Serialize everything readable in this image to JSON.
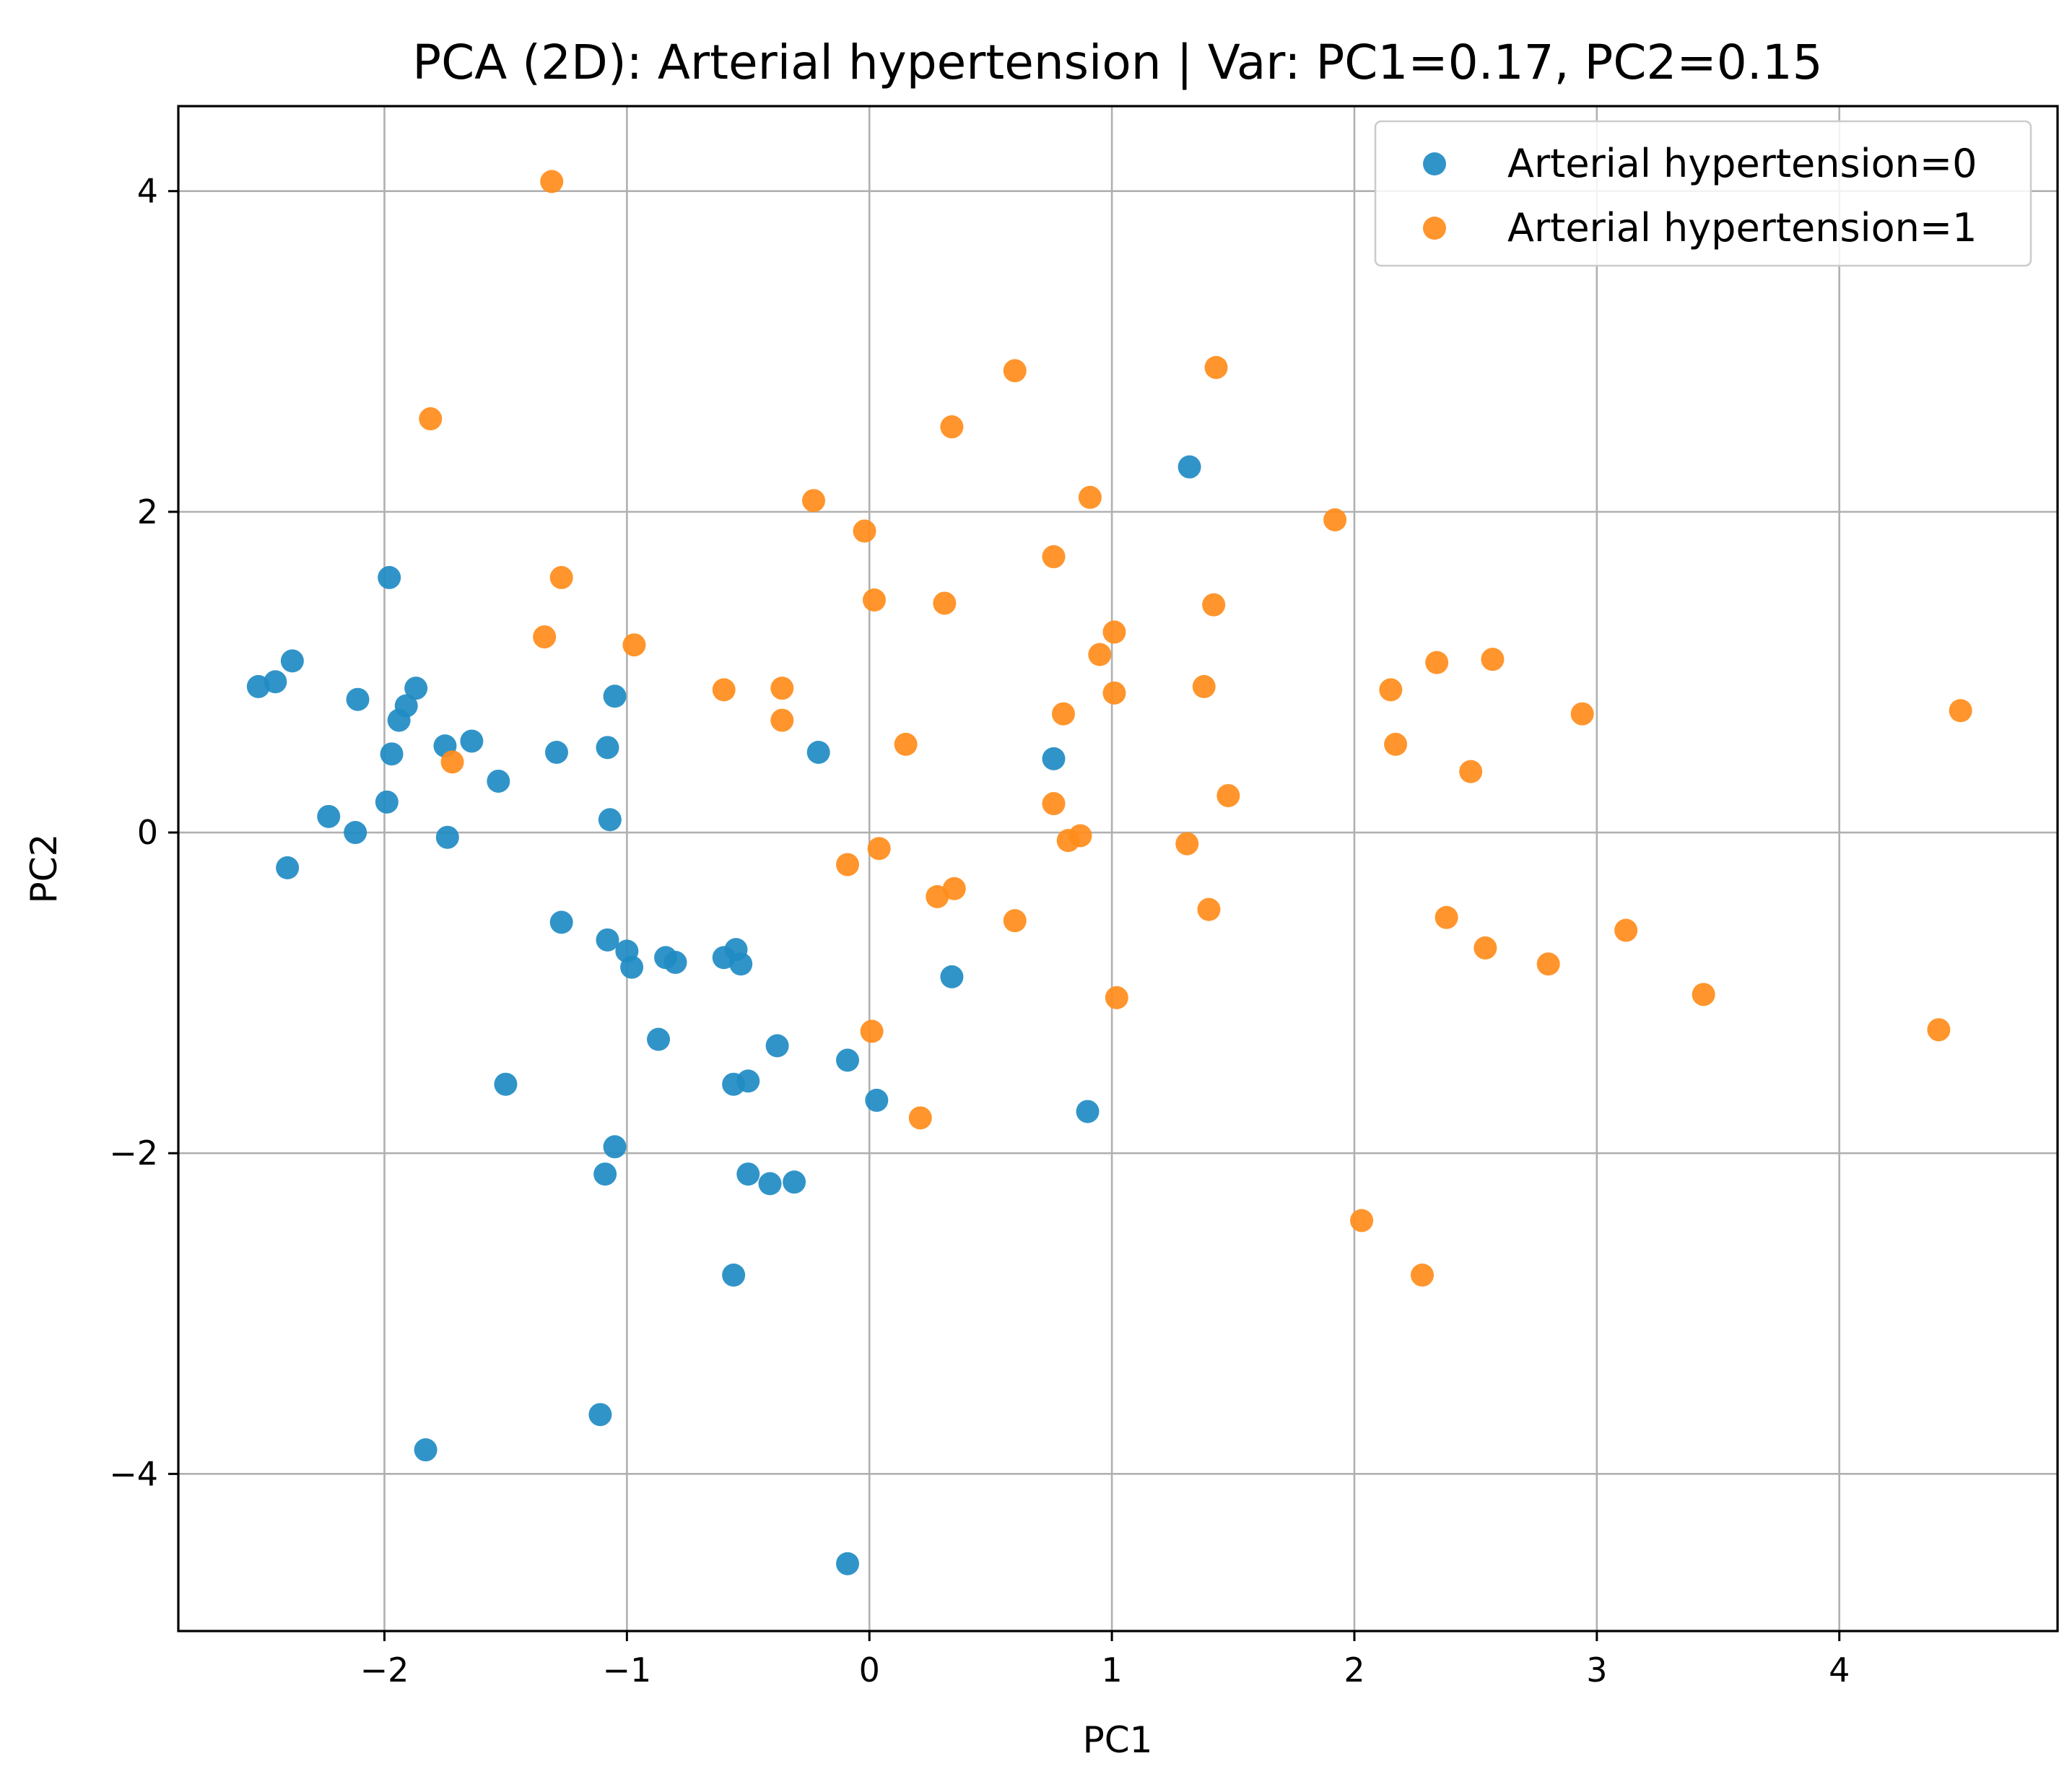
{
  "chart_data": {
    "type": "scatter",
    "title": "PCA (2D): Arterial hypertension  |  Var: PC1=0.17, PC2=0.15",
    "xlabel": "PC1",
    "ylabel": "PC2",
    "xlim": [
      -2.85,
      4.9
    ],
    "ylim": [
      -4.98,
      4.53
    ],
    "grid": true,
    "legend_position": "top-right",
    "xticks": [
      -2,
      -1,
      0,
      1,
      2,
      3,
      4
    ],
    "yticks": [
      -4,
      -2,
      0,
      2,
      4
    ],
    "xtick_labels": [
      "−2",
      "−1",
      "0",
      "1",
      "2",
      "3",
      "4"
    ],
    "ytick_labels": [
      "−4",
      "−2",
      "0",
      "2",
      "4"
    ],
    "series": [
      {
        "name": "Arterial hypertension=0",
        "color": "#1f8bc3",
        "points": [
          [
            -2.52,
            0.91
          ],
          [
            -2.45,
            0.94
          ],
          [
            -2.38,
            1.07
          ],
          [
            -2.4,
            -0.22
          ],
          [
            -2.23,
            0.1
          ],
          [
            -2.12,
            0.0
          ],
          [
            -2.11,
            0.83
          ],
          [
            -1.99,
            0.19
          ],
          [
            -1.98,
            1.59
          ],
          [
            -1.97,
            0.49
          ],
          [
            -1.94,
            0.7
          ],
          [
            -1.91,
            0.79
          ],
          [
            -1.87,
            0.9
          ],
          [
            -1.75,
            0.54
          ],
          [
            -1.74,
            -0.03
          ],
          [
            -1.64,
            0.57
          ],
          [
            -1.53,
            0.32
          ],
          [
            -1.5,
            -1.57
          ],
          [
            -1.29,
            0.5
          ],
          [
            -1.27,
            -0.56
          ],
          [
            -1.08,
            0.53
          ],
          [
            -1.08,
            -0.67
          ],
          [
            -1.07,
            0.08
          ],
          [
            -1.05,
            0.85
          ],
          [
            -1.05,
            -1.96
          ],
          [
            -1.09,
            -2.13
          ],
          [
            -1.11,
            -3.63
          ],
          [
            -1.0,
            -0.74
          ],
          [
            -0.98,
            -0.84
          ],
          [
            -0.87,
            -1.29
          ],
          [
            -0.84,
            -0.78
          ],
          [
            -0.8,
            -0.81
          ],
          [
            -0.6,
            -0.78
          ],
          [
            -0.55,
            -0.73
          ],
          [
            -0.53,
            -0.82
          ],
          [
            -0.56,
            -1.57
          ],
          [
            -0.5,
            -1.55
          ],
          [
            -0.5,
            -2.13
          ],
          [
            -0.41,
            -2.19
          ],
          [
            -0.38,
            -1.33
          ],
          [
            -0.31,
            -2.18
          ],
          [
            -0.21,
            0.5
          ],
          [
            -0.09,
            -1.42
          ],
          [
            -0.56,
            -2.76
          ],
          [
            -1.83,
            -3.85
          ],
          [
            -0.09,
            -4.56
          ],
          [
            0.03,
            -1.67
          ],
          [
            0.34,
            -0.9
          ],
          [
            0.76,
            0.46
          ],
          [
            0.9,
            -1.74
          ],
          [
            1.32,
            2.28
          ]
        ]
      },
      {
        "name": "Arterial hypertension=1",
        "color": "#ff8c1a",
        "points": [
          [
            -1.31,
            4.06
          ],
          [
            -1.81,
            2.58
          ],
          [
            -1.27,
            1.59
          ],
          [
            -1.34,
            1.22
          ],
          [
            -1.72,
            0.44
          ],
          [
            -0.97,
            1.17
          ],
          [
            -0.6,
            0.89
          ],
          [
            -0.36,
            0.9
          ],
          [
            -0.36,
            0.7
          ],
          [
            -0.23,
            2.07
          ],
          [
            -0.02,
            1.88
          ],
          [
            0.02,
            1.45
          ],
          [
            0.34,
            2.53
          ],
          [
            0.6,
            2.88
          ],
          [
            0.31,
            1.43
          ],
          [
            0.15,
            0.55
          ],
          [
            0.04,
            -0.1
          ],
          [
            -0.09,
            -0.2
          ],
          [
            0.01,
            -1.24
          ],
          [
            0.21,
            -1.78
          ],
          [
            0.28,
            -0.4
          ],
          [
            0.35,
            -0.35
          ],
          [
            0.6,
            -0.55
          ],
          [
            0.76,
            1.72
          ],
          [
            0.8,
            0.74
          ],
          [
            0.76,
            0.18
          ],
          [
            0.82,
            -0.05
          ],
          [
            0.87,
            -0.02
          ],
          [
            0.91,
            2.09
          ],
          [
            0.95,
            1.11
          ],
          [
            1.01,
            1.25
          ],
          [
            1.01,
            0.87
          ],
          [
            1.02,
            -1.03
          ],
          [
            1.31,
            -0.07
          ],
          [
            1.38,
            0.91
          ],
          [
            1.4,
            -0.48
          ],
          [
            1.42,
            1.42
          ],
          [
            1.43,
            2.9
          ],
          [
            1.48,
            0.23
          ],
          [
            1.92,
            1.95
          ],
          [
            2.03,
            -2.42
          ],
          [
            2.15,
            0.89
          ],
          [
            2.17,
            0.55
          ],
          [
            2.28,
            -2.76
          ],
          [
            2.34,
            1.06
          ],
          [
            2.38,
            -0.53
          ],
          [
            2.48,
            0.38
          ],
          [
            2.54,
            -0.72
          ],
          [
            2.57,
            1.08
          ],
          [
            2.8,
            -0.82
          ],
          [
            2.94,
            0.74
          ],
          [
            3.12,
            -0.61
          ],
          [
            3.44,
            -1.01
          ],
          [
            4.41,
            -1.23
          ],
          [
            4.5,
            0.76
          ]
        ]
      }
    ]
  }
}
